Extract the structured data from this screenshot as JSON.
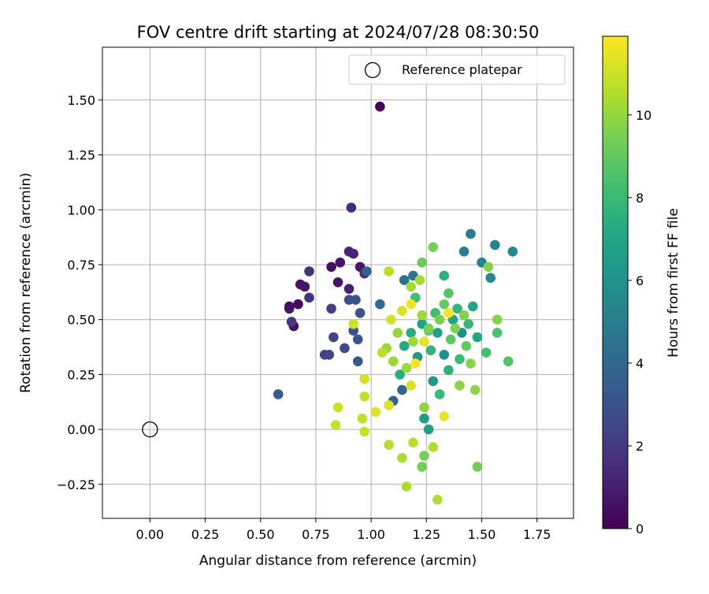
{
  "chart_data": {
    "type": "scatter",
    "title": "FOV centre drift starting at 2024/07/28 08:30:50",
    "xlabel": "Angular distance from reference (arcmin)",
    "ylabel": "Rotation from reference (arcmin)",
    "xlim": [
      -0.215,
      1.915
    ],
    "ylim": [
      -0.405,
      1.74
    ],
    "xticks": [
      "0.00",
      "0.25",
      "0.50",
      "0.75",
      "1.00",
      "1.25",
      "1.50",
      "1.75"
    ],
    "xtick_values": [
      0,
      0.25,
      0.5,
      0.75,
      1.0,
      1.25,
      1.5,
      1.75
    ],
    "yticks": [
      "−0.25",
      "0.00",
      "0.25",
      "0.50",
      "0.75",
      "1.00",
      "1.25",
      "1.50"
    ],
    "ytick_values": [
      -0.25,
      0,
      0.25,
      0.5,
      0.75,
      1.0,
      1.25,
      1.5
    ],
    "grid": true,
    "legend": {
      "placement": "top-right",
      "entries": [
        "Reference platepar"
      ]
    },
    "reference_point": {
      "x": 0.0,
      "y": 0.0
    },
    "colorbar": {
      "label": "Hours from first FF file",
      "min": 0,
      "max": 11.9,
      "ticks": [
        "0",
        "2",
        "4",
        "6",
        "8",
        "10"
      ],
      "tick_values": [
        0,
        2,
        4,
        6,
        8,
        10
      ],
      "colormap": "viridis"
    },
    "points": [
      {
        "x": 1.04,
        "y": 1.47,
        "c": 0.1
      },
      {
        "x": 0.63,
        "y": 0.56,
        "c": 0.3
      },
      {
        "x": 0.67,
        "y": 0.57,
        "c": 0.3
      },
      {
        "x": 0.65,
        "y": 0.47,
        "c": 0.4
      },
      {
        "x": 0.63,
        "y": 0.55,
        "c": 0.5
      },
      {
        "x": 0.68,
        "y": 0.66,
        "c": 0.6
      },
      {
        "x": 0.7,
        "y": 0.65,
        "c": 0.6
      },
      {
        "x": 0.82,
        "y": 0.74,
        "c": 0.5
      },
      {
        "x": 0.86,
        "y": 0.76,
        "c": 0.6
      },
      {
        "x": 0.85,
        "y": 0.67,
        "c": 0.7
      },
      {
        "x": 0.95,
        "y": 0.74,
        "c": 0.8
      },
      {
        "x": 0.9,
        "y": 0.64,
        "c": 1.0
      },
      {
        "x": 0.92,
        "y": 0.8,
        "c": 1.1
      },
      {
        "x": 0.9,
        "y": 0.81,
        "c": 1.3
      },
      {
        "x": 0.97,
        "y": 0.71,
        "c": 1.4
      },
      {
        "x": 0.91,
        "y": 1.01,
        "c": 1.5
      },
      {
        "x": 0.72,
        "y": 0.72,
        "c": 1.7
      },
      {
        "x": 0.72,
        "y": 0.6,
        "c": 1.8
      },
      {
        "x": 0.64,
        "y": 0.49,
        "c": 2.0
      },
      {
        "x": 0.82,
        "y": 0.55,
        "c": 2.2
      },
      {
        "x": 0.79,
        "y": 0.34,
        "c": 2.3
      },
      {
        "x": 0.81,
        "y": 0.34,
        "c": 2.4
      },
      {
        "x": 0.83,
        "y": 0.42,
        "c": 2.5
      },
      {
        "x": 0.88,
        "y": 0.37,
        "c": 2.6
      },
      {
        "x": 0.9,
        "y": 0.59,
        "c": 2.8
      },
      {
        "x": 0.93,
        "y": 0.59,
        "c": 2.9
      },
      {
        "x": 0.92,
        "y": 0.45,
        "c": 3.0
      },
      {
        "x": 0.95,
        "y": 0.53,
        "c": 3.1
      },
      {
        "x": 0.94,
        "y": 0.41,
        "c": 3.2
      },
      {
        "x": 0.94,
        "y": 0.31,
        "c": 3.4
      },
      {
        "x": 0.58,
        "y": 0.16,
        "c": 3.5
      },
      {
        "x": 0.98,
        "y": 0.72,
        "c": 3.6
      },
      {
        "x": 1.1,
        "y": 0.13,
        "c": 3.8
      },
      {
        "x": 1.14,
        "y": 0.18,
        "c": 4.0
      },
      {
        "x": 1.04,
        "y": 0.57,
        "c": 4.2
      },
      {
        "x": 1.15,
        "y": 0.68,
        "c": 4.4
      },
      {
        "x": 1.19,
        "y": 0.7,
        "c": 4.6
      },
      {
        "x": 1.45,
        "y": 0.89,
        "c": 5.0
      },
      {
        "x": 1.42,
        "y": 0.81,
        "c": 5.1
      },
      {
        "x": 1.5,
        "y": 0.76,
        "c": 5.3
      },
      {
        "x": 1.56,
        "y": 0.84,
        "c": 5.4
      },
      {
        "x": 1.64,
        "y": 0.81,
        "c": 5.5
      },
      {
        "x": 1.54,
        "y": 0.69,
        "c": 5.6
      },
      {
        "x": 1.41,
        "y": 0.44,
        "c": 5.8
      },
      {
        "x": 1.33,
        "y": 0.34,
        "c": 6.0
      },
      {
        "x": 1.28,
        "y": 0.22,
        "c": 6.2
      },
      {
        "x": 1.21,
        "y": 0.33,
        "c": 6.4
      },
      {
        "x": 1.24,
        "y": 0.05,
        "c": 6.5
      },
      {
        "x": 1.26,
        "y": 0.0,
        "c": 6.6
      },
      {
        "x": 1.3,
        "y": 0.44,
        "c": 6.7
      },
      {
        "x": 1.23,
        "y": 0.48,
        "c": 6.8
      },
      {
        "x": 1.37,
        "y": 0.5,
        "c": 6.9
      },
      {
        "x": 1.46,
        "y": 0.56,
        "c": 7.0
      },
      {
        "x": 1.48,
        "y": 0.42,
        "c": 7.1
      },
      {
        "x": 1.15,
        "y": 0.38,
        "c": 7.2
      },
      {
        "x": 1.13,
        "y": 0.25,
        "c": 7.3
      },
      {
        "x": 1.18,
        "y": 0.44,
        "c": 7.4
      },
      {
        "x": 1.33,
        "y": 0.7,
        "c": 7.5
      },
      {
        "x": 1.35,
        "y": 0.27,
        "c": 7.6
      },
      {
        "x": 1.27,
        "y": 0.36,
        "c": 7.7
      },
      {
        "x": 1.39,
        "y": 0.55,
        "c": 7.8
      },
      {
        "x": 1.44,
        "y": 0.48,
        "c": 7.9
      },
      {
        "x": 1.31,
        "y": 0.16,
        "c": 8.0
      },
      {
        "x": 1.4,
        "y": 0.32,
        "c": 8.1
      },
      {
        "x": 1.29,
        "y": 0.53,
        "c": 8.2
      },
      {
        "x": 1.2,
        "y": 0.6,
        "c": 8.3
      },
      {
        "x": 1.52,
        "y": 0.35,
        "c": 8.4
      },
      {
        "x": 1.57,
        "y": 0.44,
        "c": 8.5
      },
      {
        "x": 1.62,
        "y": 0.31,
        "c": 8.6
      },
      {
        "x": 1.35,
        "y": 0.62,
        "c": 8.7
      },
      {
        "x": 1.26,
        "y": 0.45,
        "c": 8.8
      },
      {
        "x": 1.36,
        "y": 0.41,
        "c": 8.9
      },
      {
        "x": 1.43,
        "y": 0.38,
        "c": 9.0
      },
      {
        "x": 1.33,
        "y": 0.57,
        "c": 9.1
      },
      {
        "x": 1.23,
        "y": 0.76,
        "c": 9.2
      },
      {
        "x": 1.48,
        "y": -0.17,
        "c": 9.3
      },
      {
        "x": 1.23,
        "y": -0.17,
        "c": 9.3
      },
      {
        "x": 1.24,
        "y": -0.12,
        "c": 9.4
      },
      {
        "x": 1.28,
        "y": 0.83,
        "c": 9.4
      },
      {
        "x": 1.26,
        "y": 0.46,
        "c": 9.5
      },
      {
        "x": 1.31,
        "y": 0.5,
        "c": 9.5
      },
      {
        "x": 1.38,
        "y": 0.46,
        "c": 9.6
      },
      {
        "x": 1.42,
        "y": 0.52,
        "c": 9.6
      },
      {
        "x": 1.53,
        "y": 0.74,
        "c": 9.7
      },
      {
        "x": 1.57,
        "y": 0.5,
        "c": 9.7
      },
      {
        "x": 1.45,
        "y": 0.3,
        "c": 9.8
      },
      {
        "x": 1.4,
        "y": 0.2,
        "c": 9.8
      },
      {
        "x": 1.47,
        "y": 0.18,
        "c": 9.9
      },
      {
        "x": 1.24,
        "y": 0.1,
        "c": 9.9
      },
      {
        "x": 1.12,
        "y": 0.44,
        "c": 10.0
      },
      {
        "x": 1.07,
        "y": 0.37,
        "c": 10.0
      },
      {
        "x": 1.1,
        "y": 0.31,
        "c": 10.1
      },
      {
        "x": 1.16,
        "y": 0.28,
        "c": 10.1
      },
      {
        "x": 1.19,
        "y": 0.4,
        "c": 10.2
      },
      {
        "x": 1.23,
        "y": 0.52,
        "c": 10.2
      },
      {
        "x": 1.18,
        "y": 0.65,
        "c": 10.3
      },
      {
        "x": 1.22,
        "y": 0.68,
        "c": 10.3
      },
      {
        "x": 1.14,
        "y": -0.13,
        "c": 10.4
      },
      {
        "x": 1.16,
        "y": -0.26,
        "c": 10.4
      },
      {
        "x": 1.3,
        "y": -0.32,
        "c": 10.5
      },
      {
        "x": 1.28,
        "y": -0.08,
        "c": 10.5
      },
      {
        "x": 1.19,
        "y": -0.06,
        "c": 10.6
      },
      {
        "x": 1.08,
        "y": -0.07,
        "c": 10.6
      },
      {
        "x": 1.05,
        "y": 0.35,
        "c": 10.7
      },
      {
        "x": 1.08,
        "y": 0.72,
        "c": 10.7
      },
      {
        "x": 0.97,
        "y": 0.15,
        "c": 10.8
      },
      {
        "x": 0.96,
        "y": 0.05,
        "c": 10.8
      },
      {
        "x": 0.97,
        "y": -0.01,
        "c": 10.9
      },
      {
        "x": 0.84,
        "y": 0.02,
        "c": 10.9
      },
      {
        "x": 0.85,
        "y": 0.1,
        "c": 11.0
      },
      {
        "x": 0.92,
        "y": 0.48,
        "c": 11.0
      },
      {
        "x": 0.97,
        "y": 0.23,
        "c": 11.1
      },
      {
        "x": 1.09,
        "y": 0.5,
        "c": 11.1
      },
      {
        "x": 1.14,
        "y": 0.54,
        "c": 11.2
      },
      {
        "x": 1.18,
        "y": 0.2,
        "c": 11.2
      },
      {
        "x": 1.02,
        "y": 0.08,
        "c": 11.3
      },
      {
        "x": 1.08,
        "y": 0.11,
        "c": 11.3
      },
      {
        "x": 1.24,
        "y": 0.4,
        "c": 11.4
      },
      {
        "x": 1.33,
        "y": 0.06,
        "c": 11.5
      },
      {
        "x": 1.18,
        "y": 0.57,
        "c": 11.6
      },
      {
        "x": 1.35,
        "y": 0.53,
        "c": 11.7
      },
      {
        "x": 1.2,
        "y": 0.3,
        "c": 11.8
      }
    ]
  }
}
